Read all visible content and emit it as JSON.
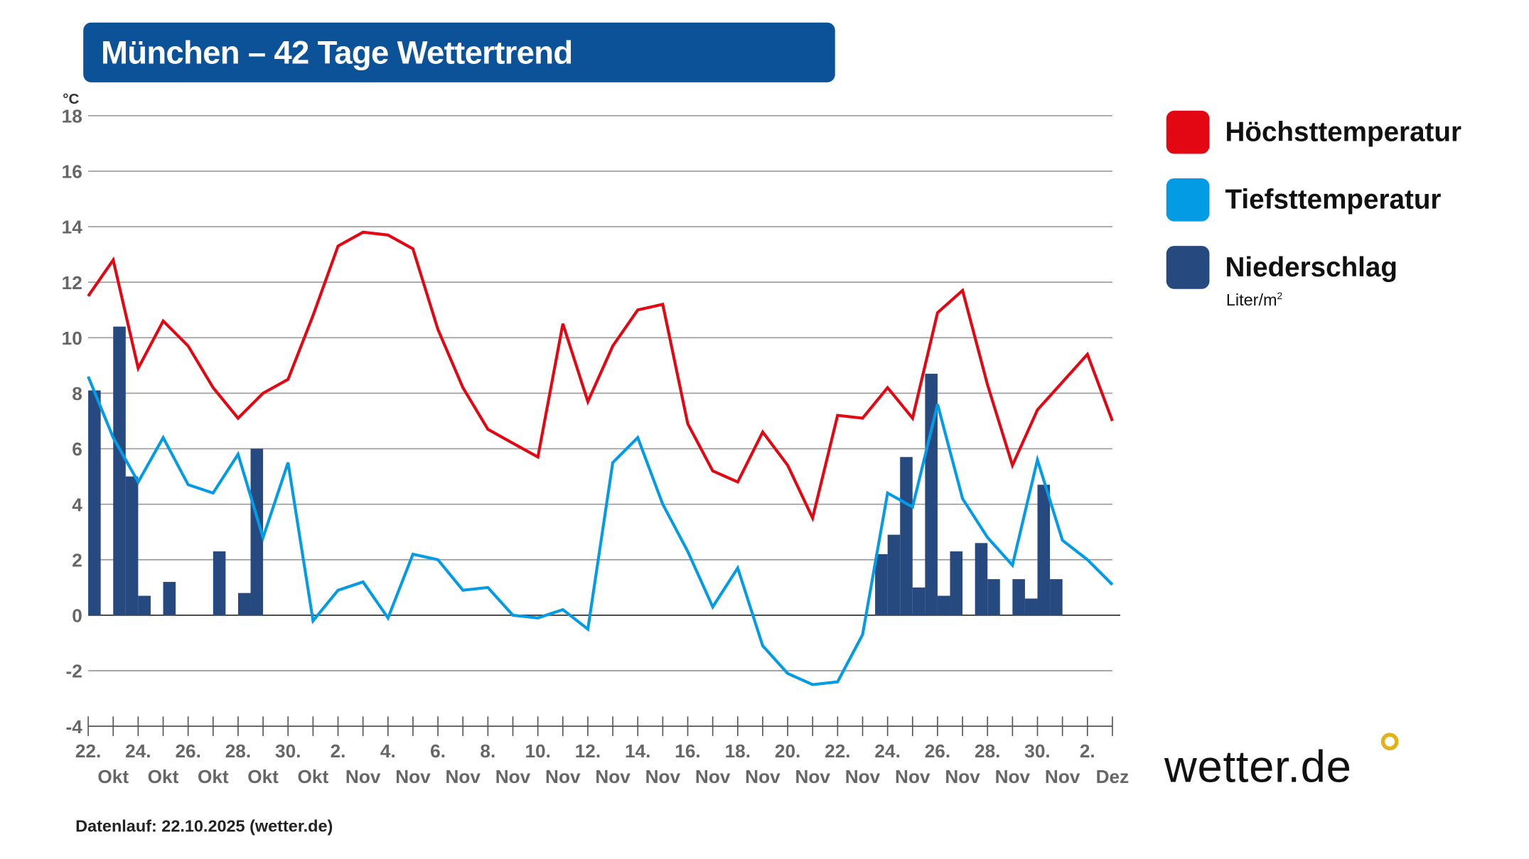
{
  "title": "München – 42 Tage Wettertrend",
  "footer": "Datenlauf: 22.10.2025 (wetter.de)",
  "logo": "wetter.de",
  "chart_data": {
    "type": "line+bar",
    "ylabel": "°C",
    "ylim": [
      -4,
      18
    ],
    "yticks": [
      -4,
      -2,
      0,
      2,
      4,
      6,
      8,
      10,
      12,
      14,
      16,
      18
    ],
    "grid": true,
    "legend_position": "right",
    "x_tick_labels": [
      [
        "22.",
        "Okt"
      ],
      [
        "24.",
        "Okt"
      ],
      [
        "26.",
        "Okt"
      ],
      [
        "28.",
        "Okt"
      ],
      [
        "30.",
        "Okt"
      ],
      [
        "2.",
        "Nov"
      ],
      [
        "4.",
        "Nov"
      ],
      [
        "6.",
        "Nov"
      ],
      [
        "8.",
        "Nov"
      ],
      [
        "10.",
        "Nov"
      ],
      [
        "12.",
        "Nov"
      ],
      [
        "14.",
        "Nov"
      ],
      [
        "16.",
        "Nov"
      ],
      [
        "18.",
        "Nov"
      ],
      [
        "20.",
        "Nov"
      ],
      [
        "22.",
        "Nov"
      ],
      [
        "24.",
        "Nov"
      ],
      [
        "26.",
        "Nov"
      ],
      [
        "28.",
        "Nov"
      ],
      [
        "30.",
        "Nov"
      ],
      [
        "2.",
        "Dez"
      ]
    ],
    "series": [
      {
        "name": "Höchsttemperatur",
        "color": "#e30613",
        "type": "line",
        "values": [
          11.5,
          12.8,
          8.9,
          10.6,
          9.7,
          8.2,
          7.1,
          8.0,
          8.5,
          10.8,
          13.3,
          13.8,
          13.7,
          13.2,
          10.3,
          8.2,
          6.7,
          6.2,
          5.7,
          10.5,
          7.7,
          9.7,
          11.0,
          11.2,
          6.9,
          5.2,
          4.8,
          6.6,
          5.4,
          3.5,
          7.2,
          7.1,
          8.2,
          7.1,
          10.9,
          11.7,
          8.3,
          5.4,
          7.4,
          8.4,
          9.4,
          7.0
        ]
      },
      {
        "name": "Tiefsttemperatur",
        "color": "#049be5",
        "type": "line",
        "values": [
          8.6,
          6.4,
          4.8,
          6.4,
          4.7,
          4.4,
          5.8,
          2.8,
          5.5,
          -0.2,
          0.9,
          1.2,
          -0.1,
          2.2,
          2.0,
          0.9,
          1.0,
          0.0,
          -0.1,
          0.2,
          -0.5,
          5.5,
          6.4,
          4.0,
          2.3,
          0.3,
          1.7,
          -1.1,
          -2.1,
          -2.5,
          -2.4,
          -0.7,
          4.4,
          3.9,
          7.6,
          4.2,
          2.8,
          1.8,
          5.6,
          2.7,
          2.0,
          1.1
        ]
      },
      {
        "name": "Niederschlag",
        "unit": "Liter/m2",
        "color": "#264a80",
        "type": "bar",
        "values": [
          8.1,
          0,
          10.4,
          5.0,
          0.7,
          0,
          1.2,
          0,
          0,
          0,
          2.3,
          0,
          0.8,
          6.0,
          0,
          0,
          0,
          0,
          0,
          0,
          0,
          0,
          0,
          0,
          0,
          0,
          0,
          0,
          0,
          0,
          0,
          0,
          0,
          0,
          0,
          0,
          0,
          0,
          0,
          0,
          0,
          0,
          0,
          0,
          0,
          0,
          0,
          0,
          0,
          0,
          0,
          0,
          0,
          0,
          0,
          0,
          0,
          0,
          0,
          0,
          0,
          0,
          0,
          2.2,
          2.9,
          5.7,
          1.0,
          8.7,
          0.7,
          2.3,
          0,
          2.6,
          1.3,
          0,
          1.3,
          0.6,
          4.7,
          1.3,
          0,
          0,
          0,
          0
        ]
      }
    ]
  },
  "legend": {
    "items": [
      {
        "label": "Höchsttemperatur",
        "color": "#e30613"
      },
      {
        "label": "Tiefsttemperatur",
        "color": "#049be5"
      },
      {
        "label": "Niederschlag",
        "color": "#264a80"
      }
    ],
    "unit": "Liter/m",
    "unit_sup": "2"
  }
}
